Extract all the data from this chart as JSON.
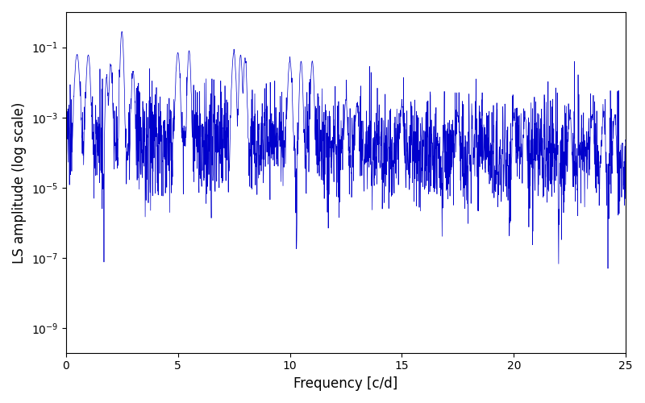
{
  "title": "",
  "xlabel": "Frequency [c/d]",
  "ylabel": "LS amplitude (log scale)",
  "xlim": [
    0,
    25
  ],
  "ylim": [
    2e-10,
    1.0
  ],
  "yscale": "log",
  "line_color": "#0000cc",
  "line_width": 0.5,
  "freq_min": 0.0,
  "freq_max": 25.0,
  "n_points": 2500,
  "seed": 137,
  "background_color": "#ffffff",
  "figsize": [
    8.0,
    5.0
  ],
  "dpi": 100,
  "yticks": [
    1e-09,
    1e-07,
    1e-05,
    0.001,
    0.1
  ],
  "xticks": [
    0,
    5,
    10,
    15,
    20,
    25
  ],
  "noise_sigma": 1.8,
  "base_decay": 0.05,
  "base_floor": 3e-05
}
